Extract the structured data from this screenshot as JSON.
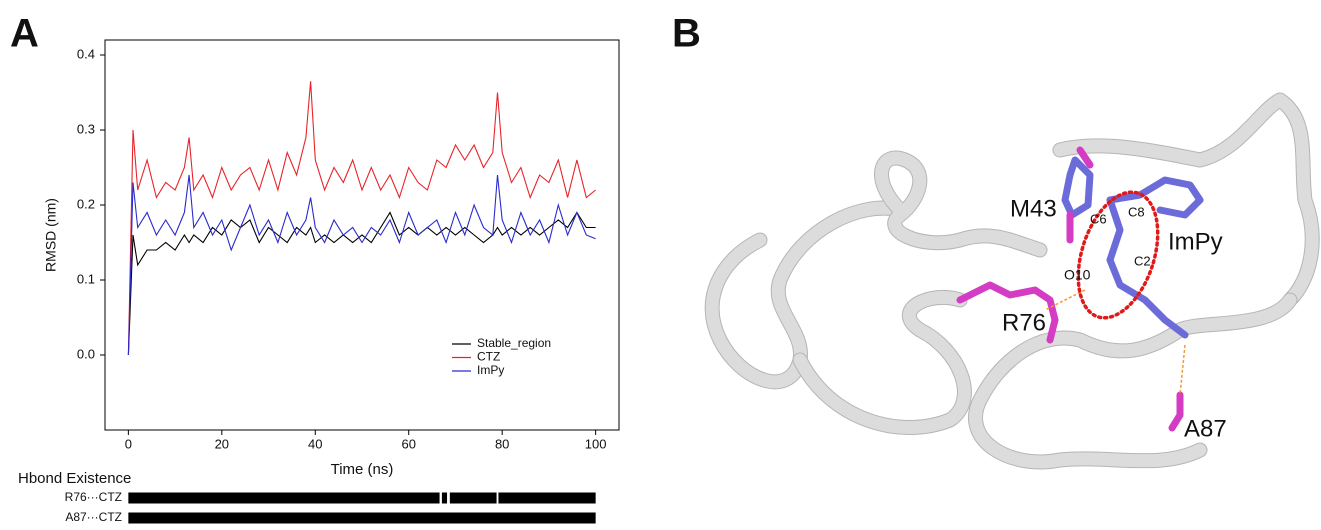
{
  "panels": {
    "a": "A",
    "b": "B"
  },
  "chart_data": [
    {
      "type": "line",
      "xlabel": "Time (ns)",
      "ylabel": "RMSD (nm)",
      "x": [
        0,
        1,
        2,
        4,
        6,
        8,
        10,
        12,
        13,
        14,
        16,
        18,
        20,
        22,
        24,
        26,
        28,
        30,
        32,
        34,
        36,
        38,
        39,
        40,
        42,
        44,
        46,
        48,
        50,
        52,
        54,
        56,
        58,
        60,
        62,
        64,
        66,
        68,
        70,
        72,
        74,
        76,
        78,
        79,
        80,
        82,
        84,
        86,
        88,
        90,
        92,
        94,
        96,
        98,
        100
      ],
      "series": [
        {
          "name": "Stable_region",
          "color": "#000000",
          "values": [
            0,
            0.16,
            0.12,
            0.14,
            0.14,
            0.15,
            0.14,
            0.16,
            0.15,
            0.16,
            0.15,
            0.17,
            0.16,
            0.18,
            0.17,
            0.18,
            0.15,
            0.17,
            0.16,
            0.15,
            0.17,
            0.16,
            0.17,
            0.15,
            0.16,
            0.15,
            0.16,
            0.15,
            0.16,
            0.15,
            0.17,
            0.19,
            0.16,
            0.17,
            0.16,
            0.17,
            0.16,
            0.17,
            0.16,
            0.17,
            0.16,
            0.15,
            0.16,
            0.17,
            0.16,
            0.17,
            0.16,
            0.17,
            0.16,
            0.17,
            0.18,
            0.17,
            0.19,
            0.17,
            0.17
          ]
        },
        {
          "name": "CTZ",
          "color": "#e8242a",
          "values": [
            0,
            0.3,
            0.22,
            0.26,
            0.21,
            0.23,
            0.22,
            0.25,
            0.29,
            0.22,
            0.24,
            0.21,
            0.25,
            0.22,
            0.24,
            0.25,
            0.22,
            0.26,
            0.22,
            0.27,
            0.24,
            0.29,
            0.365,
            0.26,
            0.22,
            0.25,
            0.23,
            0.26,
            0.22,
            0.25,
            0.22,
            0.24,
            0.21,
            0.25,
            0.23,
            0.22,
            0.26,
            0.25,
            0.28,
            0.26,
            0.28,
            0.25,
            0.27,
            0.35,
            0.27,
            0.23,
            0.25,
            0.21,
            0.24,
            0.23,
            0.26,
            0.21,
            0.26,
            0.21,
            0.22
          ]
        },
        {
          "name": "ImPy",
          "color": "#2a2ad0",
          "values": [
            0,
            0.23,
            0.17,
            0.19,
            0.16,
            0.18,
            0.16,
            0.19,
            0.24,
            0.17,
            0.19,
            0.16,
            0.18,
            0.14,
            0.17,
            0.2,
            0.16,
            0.18,
            0.15,
            0.19,
            0.16,
            0.18,
            0.21,
            0.17,
            0.15,
            0.18,
            0.16,
            0.17,
            0.15,
            0.17,
            0.16,
            0.18,
            0.15,
            0.19,
            0.16,
            0.17,
            0.18,
            0.15,
            0.19,
            0.16,
            0.2,
            0.17,
            0.16,
            0.24,
            0.18,
            0.15,
            0.19,
            0.16,
            0.18,
            0.15,
            0.2,
            0.16,
            0.19,
            0.16,
            0.155
          ]
        }
      ],
      "xlim": [
        -5,
        105
      ],
      "xticks": [
        0,
        20,
        40,
        60,
        80,
        100
      ],
      "ylim": [
        -0.1,
        0.42
      ],
      "yticks": [
        {
          "value": 0,
          "label": "0.0"
        },
        0.1,
        0.2,
        0.3,
        0.4
      ],
      "legend": "lower right"
    },
    {
      "type": "timeline",
      "title": "Hbond Existence",
      "color": "#000000",
      "categories": [
        "R76···CTZ",
        "A87···CTZ"
      ],
      "segments": [
        [
          [
            0,
            66.6
          ],
          [
            67.1,
            68.2
          ],
          [
            68.8,
            78.8
          ],
          [
            79.2,
            100
          ]
        ],
        [
          [
            0,
            100
          ]
        ]
      ],
      "xlim": [
        -5,
        105
      ]
    }
  ],
  "structure": {
    "labels": [
      "M43",
      "C6",
      "C8",
      "ImPy",
      "O10",
      "C2",
      "R76",
      "A87"
    ]
  }
}
